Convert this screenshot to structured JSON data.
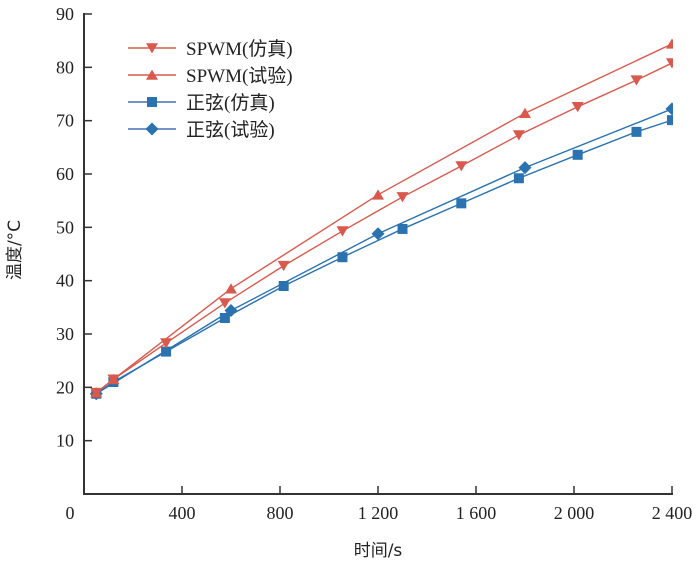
{
  "chart_data": {
    "type": "line",
    "title": "",
    "xlabel": "时间/s",
    "ylabel": "温度/°C",
    "xlim": [
      0,
      2400
    ],
    "ylim": [
      0,
      90
    ],
    "x_ticks": [
      0,
      400,
      800,
      1200,
      1600,
      2000,
      2400
    ],
    "x_tick_labels": [
      "0",
      "400",
      "800",
      "1 200",
      "1 600",
      "2 000",
      "2 400"
    ],
    "y_ticks": [
      10,
      20,
      30,
      40,
      50,
      60,
      70,
      80,
      90
    ],
    "y_tick_labels": [
      "10",
      "20",
      "30",
      "40",
      "50",
      "60",
      "70",
      "80",
      "90"
    ],
    "grid": false,
    "legend_position": "top-left",
    "series": [
      {
        "name": "SPWM(仿真)",
        "color": "#d9594c",
        "marker": "triangle-down",
        "x": [
          50,
          120,
          335,
          575,
          815,
          1055,
          1300,
          1540,
          1775,
          2015,
          2255,
          2400
        ],
        "y": [
          19.0,
          21.5,
          28.3,
          35.8,
          42.8,
          49.3,
          55.7,
          61.5,
          67.3,
          72.6,
          77.6,
          80.8
        ]
      },
      {
        "name": "SPWM(试验)",
        "color": "#d9594c",
        "marker": "triangle-up",
        "x": [
          50,
          120,
          600,
          1200,
          1800,
          2400
        ],
        "y": [
          19.0,
          21.5,
          38.5,
          56.1,
          71.4,
          84.4
        ]
      },
      {
        "name": "正弦(仿真)",
        "color": "#2a72b0",
        "marker": "square",
        "x": [
          50,
          120,
          335,
          575,
          815,
          1055,
          1300,
          1540,
          1775,
          2015,
          2255,
          2400
        ],
        "y": [
          18.8,
          21.0,
          26.7,
          33.0,
          39.0,
          44.4,
          49.7,
          54.5,
          59.2,
          63.6,
          67.9,
          70.1
        ]
      },
      {
        "name": "正弦(试验)",
        "color": "#2a72b0",
        "marker": "diamond",
        "x": [
          50,
          600,
          1200,
          1800,
          2400
        ],
        "y": [
          18.8,
          34.4,
          48.8,
          61.2,
          72.2
        ]
      }
    ]
  }
}
